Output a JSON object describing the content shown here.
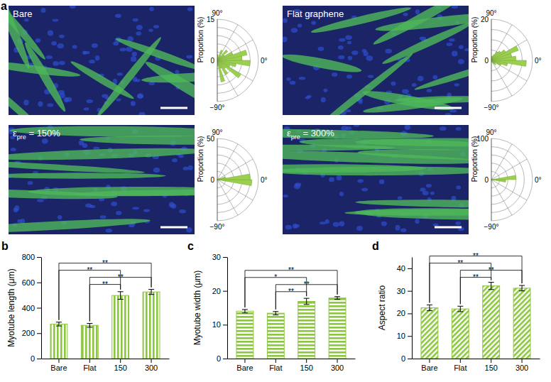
{
  "chart_data": [
    {
      "type": "polar_bar",
      "panel": "a",
      "image_label": {
        "text": "Bare"
      },
      "color": "#9bcf4f",
      "angles": [
        -85,
        -75,
        -65,
        -55,
        -45,
        -35,
        -25,
        -15,
        -5,
        5,
        15,
        25,
        35,
        45,
        55,
        65,
        75,
        85
      ],
      "values": [
        2,
        8,
        3,
        6,
        4,
        10,
        5,
        7,
        12,
        9,
        11,
        6,
        3,
        5,
        2,
        4,
        1,
        2
      ],
      "rlim": [
        0,
        15
      ],
      "rticks": [
        0,
        15
      ],
      "rgrid": [
        3,
        6,
        9,
        12,
        15
      ],
      "r_label": "Proportion (%)",
      "angle_ticks": [
        {
          "value": 90,
          "label": "90°"
        },
        {
          "value": 0,
          "label": "0°"
        },
        {
          "value": -90,
          "label": "−90°"
        }
      ],
      "angle_grid": [
        -60,
        -30,
        30,
        60
      ]
    },
    {
      "type": "polar_bar",
      "image_label": {
        "text": "Flat graphene"
      },
      "color": "#9bcf4f",
      "angles": [
        -85,
        -75,
        -65,
        -55,
        -45,
        -35,
        -25,
        -15,
        -5,
        5,
        15,
        25,
        35,
        45,
        55,
        65,
        75,
        85
      ],
      "values": [
        0,
        1,
        0,
        2,
        3,
        2,
        5,
        8,
        17,
        12,
        10,
        14,
        8,
        6,
        5,
        3,
        2,
        2
      ],
      "rlim": [
        0,
        20
      ],
      "rticks": [
        0,
        20
      ],
      "rgrid": [
        5,
        10,
        15,
        20
      ],
      "r_label": "Proportion (%)",
      "angle_ticks": [
        {
          "value": 90,
          "label": "90°"
        },
        {
          "value": 0,
          "label": "0°"
        },
        {
          "value": -90,
          "label": "−90°"
        }
      ],
      "angle_grid": [
        -60,
        -30,
        30,
        60
      ]
    },
    {
      "type": "polar_bar",
      "image_label": {
        "text": "ε",
        "sub": "pre",
        "rest": " = 150%"
      },
      "color": "#9bcf4f",
      "angles": [
        -85,
        -75,
        -65,
        -55,
        -45,
        -35,
        -25,
        -15,
        -5,
        5,
        15,
        25,
        35,
        45,
        55,
        65,
        75,
        85
      ],
      "values": [
        0,
        0,
        0,
        0,
        0,
        0,
        1,
        3,
        42,
        40,
        10,
        3,
        1,
        0,
        0,
        0,
        0,
        0
      ],
      "rlim": [
        0,
        50
      ],
      "rticks": [
        0,
        50
      ],
      "rgrid": [
        10,
        20,
        30,
        40,
        50
      ],
      "r_label": "Proportion (%)",
      "angle_ticks": [
        {
          "value": 90,
          "label": "90°"
        },
        {
          "value": 0,
          "label": "0°"
        },
        {
          "value": -90,
          "label": "−90°"
        }
      ],
      "angle_grid": [
        -60,
        -30,
        30,
        60
      ]
    },
    {
      "type": "polar_bar",
      "image_label": {
        "text": "ε",
        "sub": "pre",
        "rest": " = 300%"
      },
      "color": "#9bcf4f",
      "angles": [
        -85,
        -75,
        -65,
        -55,
        -45,
        -35,
        -25,
        -15,
        -5,
        5,
        15,
        25,
        35,
        45,
        55,
        65,
        75,
        85
      ],
      "values": [
        0,
        0,
        0,
        0,
        0,
        0,
        0,
        2,
        35,
        60,
        3,
        0,
        0,
        0,
        0,
        0,
        0,
        0
      ],
      "rlim": [
        0,
        100
      ],
      "rticks": [
        0,
        100
      ],
      "rgrid": [
        20,
        40,
        60,
        80,
        100
      ],
      "r_label": "Proportion (%)",
      "angle_ticks": [
        {
          "value": 90,
          "label": "90°"
        },
        {
          "value": 0,
          "label": "0°"
        },
        {
          "value": -90,
          "label": "−90°"
        }
      ],
      "angle_grid": [
        -60,
        -30,
        30,
        60
      ]
    },
    {
      "type": "bar",
      "panel": "b",
      "color": "#8cc63f",
      "y_label": "Myotube length (μm)",
      "categories": [
        "Bare",
        "Flat",
        "150",
        "300"
      ],
      "values": [
        272,
        262,
        497,
        525
      ],
      "errors": [
        15,
        15,
        30,
        20
      ],
      "ylim": [
        0,
        800
      ],
      "yticks": [
        0,
        200,
        400,
        600,
        800
      ],
      "significance": [
        {
          "from": 1,
          "to": 2,
          "label": "**"
        },
        {
          "from": 1,
          "to": 3,
          "label": "**"
        },
        {
          "from": 0,
          "to": 2,
          "label": "**"
        },
        {
          "from": 0,
          "to": 3,
          "label": "**"
        }
      ]
    },
    {
      "type": "bar",
      "panel": "c",
      "color": "#8cc63f",
      "y_label": "Myotube width (μm)",
      "categories": [
        "Bare",
        "Flat",
        "150",
        "300"
      ],
      "values": [
        14.0,
        13.4,
        16.9,
        17.9
      ],
      "errors": [
        0.5,
        0.5,
        0.9,
        0.4
      ],
      "ylim": [
        0,
        30
      ],
      "yticks": [
        0,
        10,
        20,
        30
      ],
      "significance": [
        {
          "from": 1,
          "to": 2,
          "label": "**"
        },
        {
          "from": 1,
          "to": 3,
          "label": "**"
        },
        {
          "from": 0,
          "to": 2,
          "label": "*"
        },
        {
          "from": 0,
          "to": 3,
          "label": "**"
        }
      ]
    },
    {
      "type": "bar",
      "panel": "d",
      "color": "#8cc63f",
      "y_label": "Aspect ratio",
      "categories": [
        "Bare",
        "Flat",
        "150",
        "300"
      ],
      "values": [
        22.5,
        22.0,
        32.2,
        31.2
      ],
      "errors": [
        1.3,
        1.2,
        1.6,
        1.2
      ],
      "ylim": [
        0,
        45
      ],
      "yticks": [
        0,
        10,
        20,
        30,
        40
      ],
      "significance": [
        {
          "from": 1,
          "to": 2,
          "label": "**"
        },
        {
          "from": 1,
          "to": 3,
          "label": "**"
        },
        {
          "from": 0,
          "to": 2,
          "label": "**"
        },
        {
          "from": 0,
          "to": 3,
          "label": "**"
        }
      ]
    }
  ]
}
